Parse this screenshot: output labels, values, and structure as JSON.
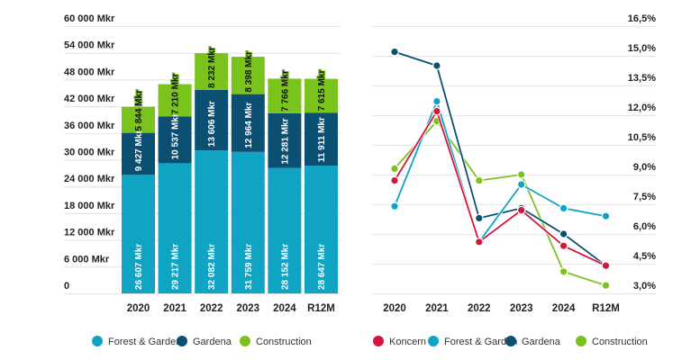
{
  "chart_data": [
    {
      "type": "bar",
      "stacked": true,
      "title": "",
      "xlabel": "",
      "ylabel": "",
      "categories": [
        "2020",
        "2021",
        "2022",
        "2023",
        "2024",
        "R12M"
      ],
      "ylim": [
        0,
        60000
      ],
      "yticks": [
        0,
        6000,
        12000,
        18000,
        24000,
        30000,
        36000,
        42000,
        48000,
        54000,
        60000
      ],
      "ytick_labels": [
        "0",
        "6 000 Mkr",
        "12 000 Mkr",
        "18 000 Mkr",
        "24 000 Mkr",
        "30 000 Mkr",
        "36 000 Mkr",
        "42 000 Mkr",
        "48 000 Mkr",
        "54 000 Mkr",
        "60 000 Mkr"
      ],
      "grid": true,
      "legend_position": "bottom",
      "series": [
        {
          "name": "Forest & Garden",
          "color": "#0fa3c4",
          "label_color": "#ffffff",
          "values": [
            26607,
            29217,
            32082,
            31759,
            28152,
            28647
          ],
          "labels": [
            "26 607 Mkr",
            "29 217 Mkr",
            "32 082 Mkr",
            "31 759 Mkr",
            "28 152 Mkr",
            "28 647 Mkr"
          ]
        },
        {
          "name": "Gardena",
          "color": "#0b4f72",
          "label_color": "#ffffff",
          "values": [
            9427,
            10537,
            13606,
            12964,
            12281,
            11911
          ],
          "labels": [
            "9 427 Mkr",
            "10 537 Mkr",
            "13 606 Mkr",
            "12 964 Mkr",
            "12 281 Mkr",
            "11 911 Mkr"
          ]
        },
        {
          "name": "Construction",
          "color": "#7ac31c",
          "label_color": "#111111",
          "values": [
            5844,
            7210,
            8232,
            8398,
            7766,
            7615
          ],
          "labels": [
            "5 844 Mkr",
            "7 210 Mkr",
            "8 232 Mkr",
            "8 398 Mkr",
            "7 766 Mkr",
            "7 615 Mkr"
          ]
        }
      ]
    },
    {
      "type": "line",
      "title": "",
      "xlabel": "",
      "ylabel": "",
      "categories": [
        "2020",
        "2021",
        "2022",
        "2023",
        "2024",
        "R12M"
      ],
      "ylim": [
        3.0,
        16.5
      ],
      "yticks": [
        3.0,
        4.5,
        6.0,
        7.5,
        9.0,
        10.5,
        12.0,
        13.5,
        15.0,
        16.5
      ],
      "ytick_labels": [
        "3,0%",
        "4,5%",
        "6,0%",
        "7,5%",
        "9,0%",
        "10,5%",
        "12,0%",
        "13,5%",
        "15,0%",
        "16,5%"
      ],
      "y_axis_side": "right",
      "grid": true,
      "legend_position": "bottom",
      "series": [
        {
          "name": "Koncern",
          "color": "#d4163c",
          "values": [
            8.7,
            12.2,
            5.6,
            7.2,
            5.4,
            4.4
          ]
        },
        {
          "name": "Forest & Garden",
          "color": "#0fa3c4",
          "values": [
            7.4,
            12.7,
            5.6,
            8.5,
            7.3,
            6.9
          ]
        },
        {
          "name": "Gardena",
          "color": "#0b4f72",
          "values": [
            15.2,
            14.5,
            6.8,
            7.3,
            6.0,
            4.4
          ]
        },
        {
          "name": "Construction",
          "color": "#7ac31c",
          "values": [
            9.3,
            11.7,
            8.7,
            9.0,
            4.1,
            3.4
          ]
        }
      ]
    }
  ]
}
